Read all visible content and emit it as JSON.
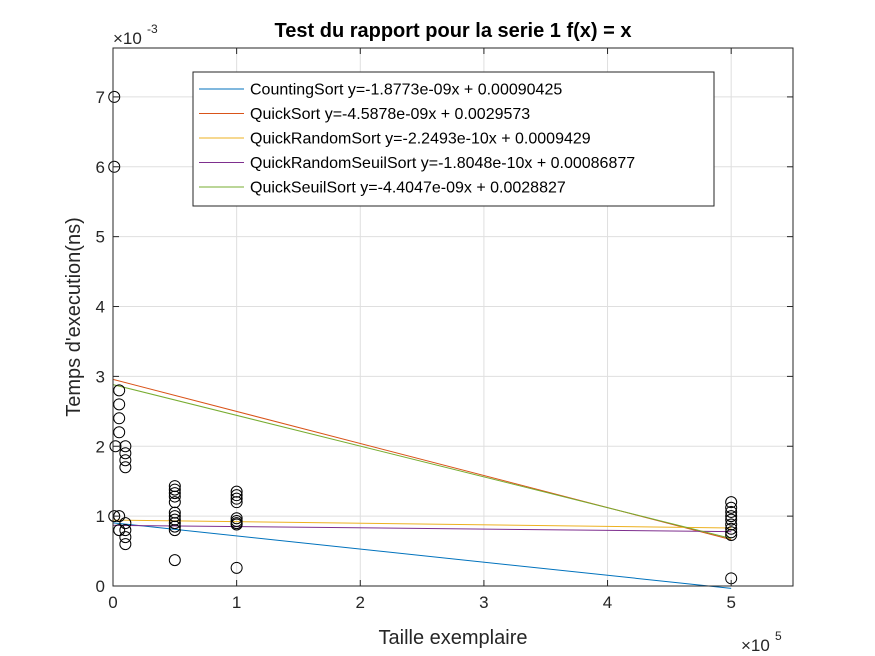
{
  "chart_data": {
    "type": "scatter",
    "title": "Test du rapport pour la serie 1 f(x) = x",
    "xlabel": "Taille exemplaire",
    "ylabel": "Temps d'execution(ns)",
    "xlim": [
      0,
      550000
    ],
    "ylim": [
      0,
      0.0077
    ],
    "x_ticks": [
      0,
      100000,
      200000,
      300000,
      400000,
      500000
    ],
    "x_tick_labels": [
      "0",
      "1",
      "2",
      "3",
      "4",
      "5"
    ],
    "y_ticks": [
      0,
      0.001,
      0.002,
      0.003,
      0.004,
      0.005,
      0.006,
      0.007
    ],
    "y_tick_labels": [
      "0",
      "1",
      "2",
      "3",
      "4",
      "5",
      "6",
      "7"
    ],
    "x_exponent": {
      "base": "×10",
      "power": "5"
    },
    "y_exponent": {
      "base": "×10",
      "power": "-3"
    },
    "grid": true,
    "legend_position": "top-right",
    "series": [
      {
        "name": "CountingSort y=-1.8773e-09x + 0.00090425",
        "slope": -1.8773e-09,
        "intercept": 0.00090425,
        "color": "#0072BD"
      },
      {
        "name": "QuickSort y=-4.5878e-09x + 0.0029573",
        "slope": -4.5878e-09,
        "intercept": 0.0029573,
        "color": "#D95319"
      },
      {
        "name": "QuickRandomSort y=-2.2493e-10x + 0.0009429",
        "slope": -2.2493e-10,
        "intercept": 0.0009429,
        "color": "#EDB120"
      },
      {
        "name": "QuickRandomSeuilSort y=-1.8048e-10x + 0.00086877",
        "slope": -1.8048e-10,
        "intercept": 0.00086877,
        "color": "#7E2F8E"
      },
      {
        "name": "QuickSeuilSort y=-4.4047e-09x + 0.0028827",
        "slope": -4.4047e-09,
        "intercept": 0.0028827,
        "color": "#77AC30"
      }
    ],
    "fit_x_range": [
      0,
      500000
    ],
    "points": [
      [
        1000,
        0.007
      ],
      [
        1000,
        0.006
      ],
      [
        1000,
        0.001
      ],
      [
        5000,
        0.001
      ],
      [
        5000,
        0.0028
      ],
      [
        5000,
        0.0026
      ],
      [
        5000,
        0.0024
      ],
      [
        5000,
        0.0022
      ],
      [
        2000,
        0.002
      ],
      [
        5000,
        0.0008
      ],
      [
        10000,
        0.002
      ],
      [
        10000,
        0.0019
      ],
      [
        10000,
        0.0018
      ],
      [
        10000,
        0.0017
      ],
      [
        10000,
        0.0009
      ],
      [
        10000,
        0.0008
      ],
      [
        10000,
        0.0007
      ],
      [
        10000,
        0.0006
      ],
      [
        50000,
        0.00143
      ],
      [
        50000,
        0.00138
      ],
      [
        50000,
        0.00133
      ],
      [
        50000,
        0.00128
      ],
      [
        50000,
        0.0012
      ],
      [
        50000,
        0.00105
      ],
      [
        50000,
        0.001
      ],
      [
        50000,
        0.00095
      ],
      [
        50000,
        0.0009
      ],
      [
        50000,
        0.00085
      ],
      [
        50000,
        0.0008
      ],
      [
        50000,
        0.00037
      ],
      [
        100000,
        0.00135
      ],
      [
        100000,
        0.0013
      ],
      [
        100000,
        0.00125
      ],
      [
        100000,
        0.0012
      ],
      [
        100000,
        0.00097
      ],
      [
        100000,
        0.00093
      ],
      [
        100000,
        0.0009
      ],
      [
        100000,
        0.00088
      ],
      [
        100000,
        0.00026
      ],
      [
        500000,
        0.0012
      ],
      [
        500000,
        0.00112
      ],
      [
        500000,
        0.00106
      ],
      [
        500000,
        0.001
      ],
      [
        500000,
        0.00095
      ],
      [
        500000,
        0.00088
      ],
      [
        500000,
        0.00082
      ],
      [
        500000,
        0.00077
      ],
      [
        500000,
        0.00073
      ],
      [
        500000,
        0.00011
      ]
    ],
    "point_color": "#000000"
  }
}
